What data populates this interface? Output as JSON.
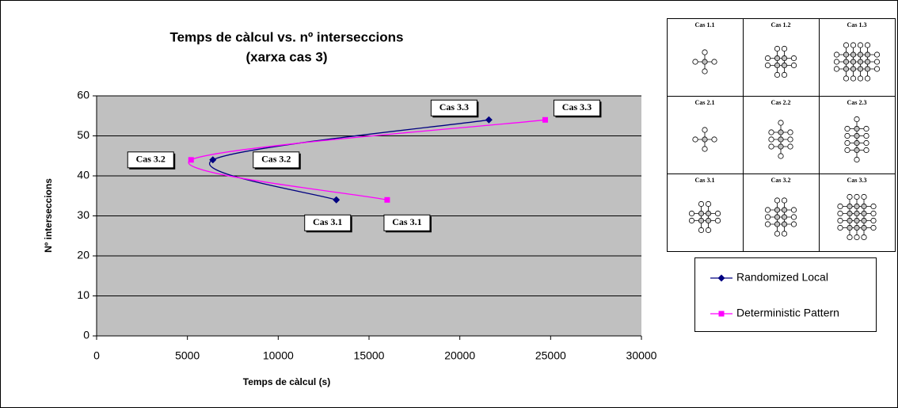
{
  "chart_data": {
    "type": "line",
    "title": "Temps de càlcul vs. nº interseccions",
    "subtitle": "(xarxa cas 3)",
    "x_label": "Temps de càlcul (s)",
    "y_label": "Nº interseccions",
    "xlim": [
      0,
      30000
    ],
    "xticks": [
      0,
      5000,
      10000,
      15000,
      20000,
      25000,
      30000
    ],
    "ylim": [
      0,
      60
    ],
    "yticks": [
      0,
      10,
      20,
      30,
      40,
      50,
      60
    ],
    "grid": true,
    "smooth": true,
    "series": [
      {
        "name": "Randomized Local",
        "color": "#000080",
        "marker": "diamond",
        "x": [
          13200,
          6400,
          21600
        ],
        "values": [
          34,
          44,
          54
        ],
        "point_labels": [
          "Cas 3.1",
          "Cas 3.2",
          "Cas 3.3"
        ]
      },
      {
        "name": "Deterministic Pattern",
        "color": "#ff00ff",
        "marker": "square",
        "x": [
          16000,
          5200,
          24700
        ],
        "values": [
          34,
          44,
          54
        ],
        "point_labels": [
          "Cas 3.1",
          "Cas 3.2",
          "Cas 3.3"
        ]
      }
    ]
  },
  "cases_grid": [
    [
      "Cas 1.1",
      "Cas 1.2",
      "Cas 1.3"
    ],
    [
      "Cas 2.1",
      "Cas 2.2",
      "Cas 2.3"
    ],
    [
      "Cas 3.1",
      "Cas 3.2",
      "Cas 3.3"
    ]
  ]
}
